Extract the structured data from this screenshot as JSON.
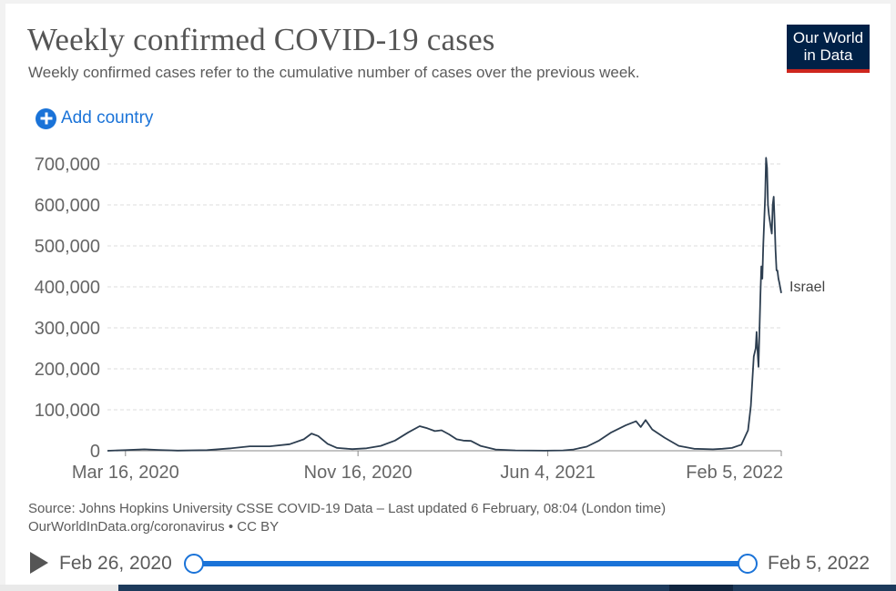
{
  "header": {
    "title": "Weekly confirmed COVID-19 cases",
    "subtitle": "Weekly confirmed cases refer to the cumulative number of cases over the previous week.",
    "logo_line1": "Our World",
    "logo_line2": "in Data"
  },
  "controls": {
    "add_country_label": "Add country"
  },
  "footer": {
    "source": "Source: Johns Hopkins University CSSE COVID-19 Data – Last updated 6 February, 08:04 (London time)",
    "license": "OurWorldInData.org/coronavirus • CC BY"
  },
  "timeline": {
    "start_label": "Feb 26, 2020",
    "end_label": "Feb 5, 2022",
    "start_fraction": 0,
    "end_fraction": 1
  },
  "colors": {
    "line": "#2d3e50",
    "grid": "#dddddd",
    "accent": "#1a73d8",
    "logo_bg": "#002147",
    "logo_bar": "#ce261e"
  },
  "chart_data": {
    "type": "line",
    "title": "Weekly confirmed COVID-19 cases",
    "xlabel": "",
    "ylabel": "",
    "xlim": [
      "2020-02-26",
      "2022-02-05"
    ],
    "ylim": [
      0,
      700000
    ],
    "yticks": [
      0,
      100000,
      200000,
      300000,
      400000,
      500000,
      600000,
      700000
    ],
    "ytick_labels": [
      "0",
      "100,000",
      "200,000",
      "300,000",
      "400,000",
      "500,000",
      "600,000",
      "700,000"
    ],
    "xticks": [
      "2020-03-16",
      "2020-11-16",
      "2021-06-04",
      "2022-02-05"
    ],
    "xtick_labels": [
      "Mar 16, 2020",
      "Nov 16, 2020",
      "Jun 4, 2021",
      "Feb 5, 2022"
    ],
    "grid": "horizontal-dashed",
    "series": [
      {
        "name": "Israel",
        "points": [
          [
            "2020-02-26",
            0
          ],
          [
            "2020-03-16",
            1500
          ],
          [
            "2020-04-05",
            3500
          ],
          [
            "2020-04-20",
            2000
          ],
          [
            "2020-05-10",
            500
          ],
          [
            "2020-06-10",
            1500
          ],
          [
            "2020-07-05",
            6000
          ],
          [
            "2020-07-25",
            11000
          ],
          [
            "2020-08-15",
            11000
          ],
          [
            "2020-09-05",
            16000
          ],
          [
            "2020-09-20",
            28000
          ],
          [
            "2020-09-28",
            42000
          ],
          [
            "2020-10-05",
            36000
          ],
          [
            "2020-10-15",
            17000
          ],
          [
            "2020-10-25",
            7000
          ],
          [
            "2020-11-10",
            4000
          ],
          [
            "2020-11-25",
            6000
          ],
          [
            "2020-12-10",
            12000
          ],
          [
            "2020-12-25",
            25000
          ],
          [
            "2021-01-08",
            45000
          ],
          [
            "2021-01-20",
            60000
          ],
          [
            "2021-01-28",
            55000
          ],
          [
            "2021-02-05",
            48000
          ],
          [
            "2021-02-12",
            50000
          ],
          [
            "2021-02-20",
            40000
          ],
          [
            "2021-02-28",
            28000
          ],
          [
            "2021-03-07",
            25000
          ],
          [
            "2021-03-15",
            24000
          ],
          [
            "2021-03-25",
            12000
          ],
          [
            "2021-04-10",
            3000
          ],
          [
            "2021-05-01",
            800
          ],
          [
            "2021-06-01",
            300
          ],
          [
            "2021-06-20",
            1000
          ],
          [
            "2021-07-01",
            3000
          ],
          [
            "2021-07-15",
            10000
          ],
          [
            "2021-07-28",
            25000
          ],
          [
            "2021-08-10",
            45000
          ],
          [
            "2021-08-25",
            62000
          ],
          [
            "2021-09-05",
            72000
          ],
          [
            "2021-09-10",
            58000
          ],
          [
            "2021-09-15",
            75000
          ],
          [
            "2021-09-22",
            52000
          ],
          [
            "2021-10-05",
            32000
          ],
          [
            "2021-10-20",
            12000
          ],
          [
            "2021-11-05",
            5000
          ],
          [
            "2021-11-25",
            3500
          ],
          [
            "2021-12-05",
            5000
          ],
          [
            "2021-12-15",
            7000
          ],
          [
            "2021-12-25",
            15000
          ],
          [
            "2022-01-01",
            50000
          ],
          [
            "2022-01-04",
            110000
          ],
          [
            "2022-01-07",
            230000
          ],
          [
            "2022-01-09",
            250000
          ],
          [
            "2022-01-10",
            290000
          ],
          [
            "2022-01-11",
            245000
          ],
          [
            "2022-01-12",
            205000
          ],
          [
            "2022-01-14",
            380000
          ],
          [
            "2022-01-15",
            450000
          ],
          [
            "2022-01-16",
            420000
          ],
          [
            "2022-01-17",
            500000
          ],
          [
            "2022-01-19",
            620000
          ],
          [
            "2022-01-20",
            715000
          ],
          [
            "2022-01-21",
            690000
          ],
          [
            "2022-01-22",
            600000
          ],
          [
            "2022-01-23",
            575000
          ],
          [
            "2022-01-24",
            560000
          ],
          [
            "2022-01-25",
            545000
          ],
          [
            "2022-01-26",
            530000
          ],
          [
            "2022-01-27",
            600000
          ],
          [
            "2022-01-28",
            620000
          ],
          [
            "2022-01-29",
            560000
          ],
          [
            "2022-01-30",
            490000
          ],
          [
            "2022-01-31",
            440000
          ],
          [
            "2022-02-01",
            440000
          ],
          [
            "2022-02-02",
            420000
          ],
          [
            "2022-02-03",
            410000
          ],
          [
            "2022-02-05",
            385000
          ]
        ]
      }
    ]
  }
}
